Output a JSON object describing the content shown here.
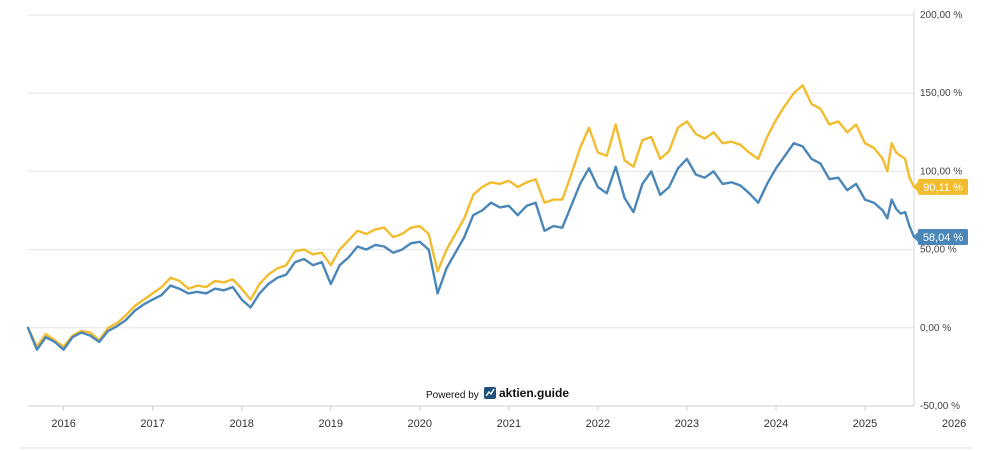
{
  "chart_data": {
    "type": "line",
    "x_label_unit": "year",
    "xlim": [
      2015.6,
      2025.55
    ],
    "ylim": [
      -50,
      200
    ],
    "y_ticks": [
      {
        "value": 200,
        "label": "200,00 %"
      },
      {
        "value": 150,
        "label": "150,00 %"
      },
      {
        "value": 100,
        "label": "100,00 %"
      },
      {
        "value": 50,
        "label": "50,00 %"
      },
      {
        "value": 0,
        "label": "0,00 %"
      },
      {
        "value": -50,
        "label": "-50,00 %"
      }
    ],
    "x_ticks": [
      {
        "value": 2016,
        "label": "2016"
      },
      {
        "value": 2017,
        "label": "2017"
      },
      {
        "value": 2018,
        "label": "2018"
      },
      {
        "value": 2019,
        "label": "2019"
      },
      {
        "value": 2020,
        "label": "2020"
      },
      {
        "value": 2021,
        "label": "2021"
      },
      {
        "value": 2022,
        "label": "2022"
      },
      {
        "value": 2023,
        "label": "2023"
      },
      {
        "value": 2024,
        "label": "2024"
      },
      {
        "value": 2025,
        "label": "2025"
      },
      {
        "value": 2026,
        "label": "2026"
      }
    ],
    "grid": true,
    "series": [
      {
        "color": "#f2bc2f",
        "end_label": "90,11 %",
        "points": [
          [
            2015.6,
            0
          ],
          [
            2015.7,
            -12
          ],
          [
            2015.8,
            -4
          ],
          [
            2015.9,
            -8
          ],
          [
            2016.0,
            -12
          ],
          [
            2016.1,
            -5
          ],
          [
            2016.2,
            -2
          ],
          [
            2016.3,
            -3
          ],
          [
            2016.4,
            -8
          ],
          [
            2016.5,
            0
          ],
          [
            2016.6,
            3
          ],
          [
            2016.7,
            8
          ],
          [
            2016.8,
            14
          ],
          [
            2016.9,
            18
          ],
          [
            2017.0,
            22
          ],
          [
            2017.1,
            26
          ],
          [
            2017.2,
            32
          ],
          [
            2017.3,
            30
          ],
          [
            2017.4,
            25
          ],
          [
            2017.5,
            27
          ],
          [
            2017.6,
            26
          ],
          [
            2017.7,
            30
          ],
          [
            2017.8,
            29
          ],
          [
            2017.9,
            31
          ],
          [
            2018.0,
            25
          ],
          [
            2018.1,
            18
          ],
          [
            2018.2,
            28
          ],
          [
            2018.3,
            34
          ],
          [
            2018.4,
            38
          ],
          [
            2018.5,
            40
          ],
          [
            2018.6,
            49
          ],
          [
            2018.7,
            50
          ],
          [
            2018.8,
            47
          ],
          [
            2018.9,
            48
          ],
          [
            2019.0,
            40
          ],
          [
            2019.1,
            50
          ],
          [
            2019.2,
            56
          ],
          [
            2019.3,
            62
          ],
          [
            2019.4,
            60
          ],
          [
            2019.5,
            63
          ],
          [
            2019.6,
            64
          ],
          [
            2019.7,
            58
          ],
          [
            2019.8,
            60
          ],
          [
            2019.9,
            64
          ],
          [
            2020.0,
            65
          ],
          [
            2020.1,
            60
          ],
          [
            2020.2,
            36
          ],
          [
            2020.3,
            50
          ],
          [
            2020.4,
            60
          ],
          [
            2020.5,
            70
          ],
          [
            2020.6,
            85
          ],
          [
            2020.7,
            90
          ],
          [
            2020.8,
            93
          ],
          [
            2020.9,
            92
          ],
          [
            2021.0,
            94
          ],
          [
            2021.1,
            90
          ],
          [
            2021.2,
            93
          ],
          [
            2021.3,
            95
          ],
          [
            2021.4,
            80
          ],
          [
            2021.5,
            82
          ],
          [
            2021.6,
            82
          ],
          [
            2021.7,
            98
          ],
          [
            2021.8,
            115
          ],
          [
            2021.9,
            128
          ],
          [
            2022.0,
            112
          ],
          [
            2022.1,
            110
          ],
          [
            2022.2,
            130
          ],
          [
            2022.3,
            107
          ],
          [
            2022.4,
            103
          ],
          [
            2022.5,
            120
          ],
          [
            2022.6,
            122
          ],
          [
            2022.7,
            108
          ],
          [
            2022.8,
            113
          ],
          [
            2022.9,
            128
          ],
          [
            2023.0,
            132
          ],
          [
            2023.1,
            124
          ],
          [
            2023.2,
            121
          ],
          [
            2023.3,
            125
          ],
          [
            2023.4,
            118
          ],
          [
            2023.5,
            119
          ],
          [
            2023.6,
            117
          ],
          [
            2023.7,
            112
          ],
          [
            2023.8,
            108
          ],
          [
            2023.9,
            122
          ],
          [
            2024.0,
            133
          ],
          [
            2024.1,
            142
          ],
          [
            2024.2,
            150
          ],
          [
            2024.3,
            155
          ],
          [
            2024.4,
            143
          ],
          [
            2024.5,
            140
          ],
          [
            2024.6,
            130
          ],
          [
            2024.7,
            132
          ],
          [
            2024.8,
            125
          ],
          [
            2024.9,
            130
          ],
          [
            2025.0,
            118
          ],
          [
            2025.1,
            115
          ],
          [
            2025.2,
            108
          ],
          [
            2025.25,
            100
          ],
          [
            2025.3,
            118
          ],
          [
            2025.35,
            112
          ],
          [
            2025.4,
            110
          ],
          [
            2025.45,
            108
          ],
          [
            2025.5,
            96
          ],
          [
            2025.55,
            90.11
          ]
        ]
      },
      {
        "color": "#4a86b8",
        "end_label": "58,04 %",
        "points": [
          [
            2015.6,
            0
          ],
          [
            2015.7,
            -14
          ],
          [
            2015.8,
            -6
          ],
          [
            2015.9,
            -9
          ],
          [
            2016.0,
            -14
          ],
          [
            2016.1,
            -6
          ],
          [
            2016.2,
            -3
          ],
          [
            2016.3,
            -5
          ],
          [
            2016.4,
            -9
          ],
          [
            2016.5,
            -2
          ],
          [
            2016.6,
            1
          ],
          [
            2016.7,
            5
          ],
          [
            2016.8,
            11
          ],
          [
            2016.9,
            15
          ],
          [
            2017.0,
            18
          ],
          [
            2017.1,
            21
          ],
          [
            2017.2,
            27
          ],
          [
            2017.3,
            25
          ],
          [
            2017.4,
            22
          ],
          [
            2017.5,
            23
          ],
          [
            2017.6,
            22
          ],
          [
            2017.7,
            25
          ],
          [
            2017.8,
            24
          ],
          [
            2017.9,
            26
          ],
          [
            2018.0,
            18
          ],
          [
            2018.1,
            13
          ],
          [
            2018.2,
            22
          ],
          [
            2018.3,
            28
          ],
          [
            2018.4,
            32
          ],
          [
            2018.5,
            34
          ],
          [
            2018.6,
            42
          ],
          [
            2018.7,
            44
          ],
          [
            2018.8,
            40
          ],
          [
            2018.9,
            42
          ],
          [
            2019.0,
            28
          ],
          [
            2019.1,
            40
          ],
          [
            2019.2,
            45
          ],
          [
            2019.3,
            52
          ],
          [
            2019.4,
            50
          ],
          [
            2019.5,
            53
          ],
          [
            2019.6,
            52
          ],
          [
            2019.7,
            48
          ],
          [
            2019.8,
            50
          ],
          [
            2019.9,
            54
          ],
          [
            2020.0,
            55
          ],
          [
            2020.1,
            50
          ],
          [
            2020.2,
            22
          ],
          [
            2020.3,
            38
          ],
          [
            2020.4,
            48
          ],
          [
            2020.5,
            58
          ],
          [
            2020.6,
            72
          ],
          [
            2020.7,
            75
          ],
          [
            2020.8,
            80
          ],
          [
            2020.9,
            77
          ],
          [
            2021.0,
            78
          ],
          [
            2021.1,
            72
          ],
          [
            2021.2,
            78
          ],
          [
            2021.3,
            80
          ],
          [
            2021.4,
            62
          ],
          [
            2021.5,
            65
          ],
          [
            2021.6,
            64
          ],
          [
            2021.7,
            78
          ],
          [
            2021.8,
            92
          ],
          [
            2021.9,
            102
          ],
          [
            2022.0,
            90
          ],
          [
            2022.1,
            86
          ],
          [
            2022.2,
            103
          ],
          [
            2022.3,
            83
          ],
          [
            2022.4,
            74
          ],
          [
            2022.5,
            92
          ],
          [
            2022.6,
            100
          ],
          [
            2022.7,
            85
          ],
          [
            2022.8,
            90
          ],
          [
            2022.9,
            102
          ],
          [
            2023.0,
            108
          ],
          [
            2023.1,
            98
          ],
          [
            2023.2,
            96
          ],
          [
            2023.3,
            100
          ],
          [
            2023.4,
            92
          ],
          [
            2023.5,
            93
          ],
          [
            2023.6,
            91
          ],
          [
            2023.7,
            86
          ],
          [
            2023.8,
            80
          ],
          [
            2023.9,
            92
          ],
          [
            2024.0,
            102
          ],
          [
            2024.1,
            110
          ],
          [
            2024.2,
            118
          ],
          [
            2024.3,
            116
          ],
          [
            2024.4,
            108
          ],
          [
            2024.5,
            105
          ],
          [
            2024.6,
            95
          ],
          [
            2024.7,
            96
          ],
          [
            2024.8,
            88
          ],
          [
            2024.9,
            92
          ],
          [
            2025.0,
            82
          ],
          [
            2025.1,
            80
          ],
          [
            2025.2,
            75
          ],
          [
            2025.25,
            70
          ],
          [
            2025.3,
            82
          ],
          [
            2025.35,
            76
          ],
          [
            2025.4,
            73
          ],
          [
            2025.45,
            74
          ],
          [
            2025.5,
            65
          ],
          [
            2025.55,
            58.04
          ]
        ]
      }
    ]
  },
  "footer": {
    "powered_label": "Powered by",
    "brand_label": "aktien.guide"
  },
  "icons": {
    "brand_icon": "chart-trend-icon"
  }
}
